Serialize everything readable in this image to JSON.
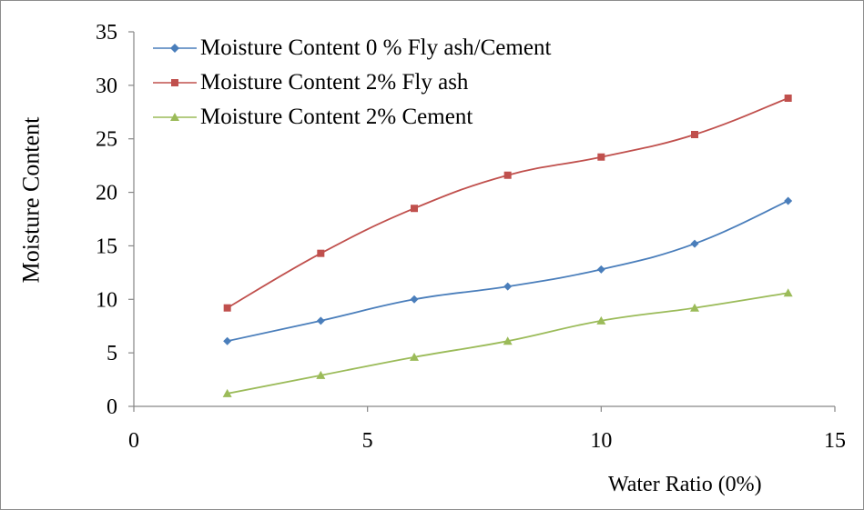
{
  "chart_data": {
    "type": "line",
    "title": "",
    "xlabel": "Water Ratio (0%)",
    "ylabel": "Moisture Content",
    "xlim": [
      0,
      15
    ],
    "ylim": [
      0,
      35
    ],
    "x_ticks": [
      0,
      5,
      10,
      15
    ],
    "y_ticks": [
      0,
      5,
      10,
      15,
      20,
      25,
      30,
      35
    ],
    "x": [
      2,
      4,
      6,
      8,
      10,
      12,
      14
    ],
    "grid": false,
    "legend_position": "top-left",
    "series": [
      {
        "name": "Moisture Content 0 % Fly ash/Cement",
        "color": "#4a7ebb",
        "marker": "diamond",
        "values": [
          6.1,
          8.0,
          10.0,
          11.2,
          12.8,
          15.2,
          19.2
        ]
      },
      {
        "name": "Moisture Content 2% Fly ash",
        "color": "#c0504d",
        "marker": "square",
        "values": [
          9.2,
          14.3,
          18.5,
          21.6,
          23.3,
          25.4,
          28.8
        ]
      },
      {
        "name": "Moisture Content 2% Cement",
        "color": "#9bbb59",
        "marker": "triangle",
        "values": [
          1.2,
          2.9,
          4.6,
          6.1,
          8.0,
          9.2,
          10.6
        ]
      }
    ]
  }
}
